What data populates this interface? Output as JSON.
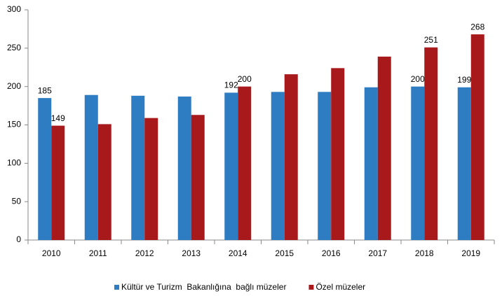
{
  "chart_data": {
    "type": "bar",
    "categories": [
      "2010",
      "2011",
      "2012",
      "2013",
      "2014",
      "2015",
      "2016",
      "2017",
      "2018",
      "2019"
    ],
    "series": [
      {
        "name": "Kültür ve Turizm  Bakanlığına  bağlı müzeler",
        "color": "#2e7cc1",
        "values": [
          185,
          189,
          188,
          187,
          192,
          193,
          193,
          199,
          200,
          199
        ],
        "value_labels": [
          "185",
          null,
          null,
          null,
          "192",
          null,
          null,
          null,
          "200",
          "199"
        ]
      },
      {
        "name": "Özel müzeler",
        "color": "#a8191c",
        "values": [
          149,
          151,
          159,
          163,
          200,
          216,
          224,
          239,
          251,
          268
        ],
        "value_labels": [
          "149",
          null,
          null,
          null,
          "200",
          null,
          null,
          null,
          "251",
          "268"
        ]
      }
    ],
    "ylim": [
      0,
      300
    ],
    "yticks": [
      0,
      50,
      100,
      150,
      200,
      250,
      300
    ],
    "grid": false,
    "legend": "bottom"
  }
}
